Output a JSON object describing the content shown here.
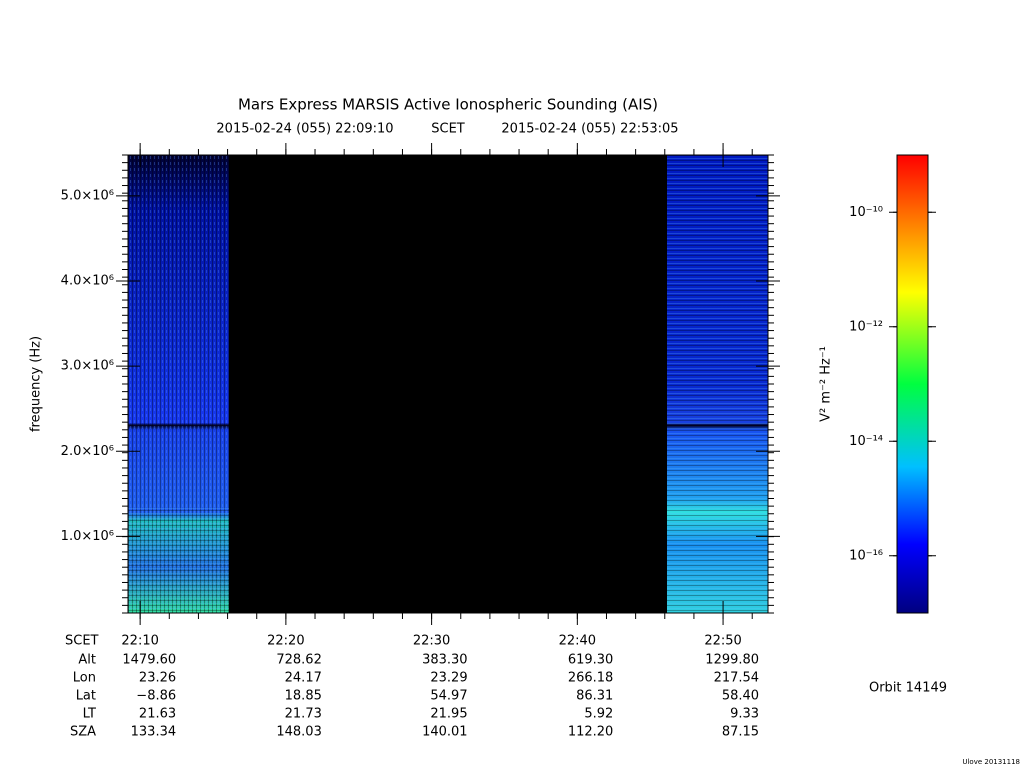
{
  "chart_data": {
    "type": "spectrogram",
    "title": "Mars Express MARSIS Active Ionospheric Sounding (AIS)",
    "time_start": "2015-02-24 (055) 22:09:10",
    "time_label": "SCET",
    "time_end": "2015-02-24 (055) 22:53:05",
    "ylabel": "frequency (Hz)",
    "ylim": [
      100000,
      5480000
    ],
    "yticks": [
      {
        "value": 1000000,
        "label": "1.0×10⁶"
      },
      {
        "value": 2000000,
        "label": "2.0×10⁶"
      },
      {
        "value": 3000000,
        "label": "3.0×10⁶"
      },
      {
        "value": 4000000,
        "label": "4.0×10⁶"
      },
      {
        "value": 5000000,
        "label": "5.0×10⁶"
      }
    ],
    "xticks": [
      "22:10",
      "22:20",
      "22:30",
      "22:40",
      "22:50"
    ],
    "colorbar": {
      "label": "V² m⁻² Hz⁻¹",
      "log": true,
      "lim": [
        1e-17,
        1e-09
      ],
      "ticks": [
        {
          "value": 1e-10,
          "label": "10⁻¹⁰"
        },
        {
          "value": 1e-12,
          "label": "10⁻¹²"
        },
        {
          "value": 1e-14,
          "label": "10⁻¹⁴"
        },
        {
          "value": 1e-16,
          "label": "10⁻¹⁶"
        }
      ]
    },
    "ephemeris": {
      "x_label": "SCET",
      "rows": [
        {
          "name": "Alt",
          "values": [
            1479.6,
            728.62,
            383.3,
            619.3,
            1299.8
          ],
          "value_labels": [
            "1479.60",
            "728.62",
            "383.30",
            "619.30",
            "1299.80"
          ]
        },
        {
          "name": "Lon",
          "values": [
            23.26,
            24.17,
            23.29,
            266.18,
            217.54
          ],
          "value_labels": [
            "23.26",
            "24.17",
            "23.29",
            "266.18",
            "217.54"
          ]
        },
        {
          "name": "Lat",
          "values": [
            -8.86,
            18.85,
            54.97,
            86.31,
            58.4
          ],
          "value_labels": [
            "−8.86",
            "18.85",
            "54.97",
            "86.31",
            "58.40"
          ]
        },
        {
          "name": "LT",
          "values": [
            21.63,
            21.73,
            21.95,
            5.92,
            9.33
          ],
          "value_labels": [
            "21.63",
            "21.73",
            "21.95",
            "5.92",
            "9.33"
          ]
        },
        {
          "name": "SZA",
          "values": [
            133.34,
            148.03,
            140.01,
            112.2,
            87.15
          ],
          "value_labels": [
            "133.34",
            "148.03",
            "140.01",
            "112.20",
            "87.15"
          ]
        }
      ]
    }
  },
  "orbit": "Orbit 14149",
  "footer": "Ulove 20131118"
}
